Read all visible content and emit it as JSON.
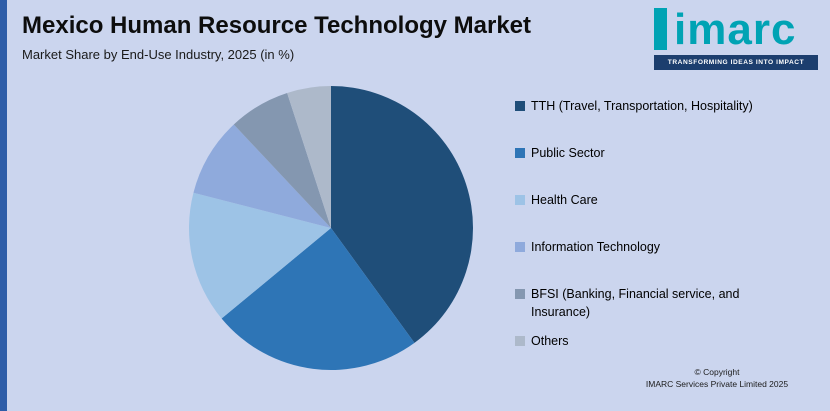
{
  "header": {
    "title": "Mexico Human Resource Technology Market",
    "subtitle": "Market Share by End-Use Industry, 2025 (in %)"
  },
  "logo": {
    "brand": "imarc",
    "tagline": "TRANSFORMING IDEAS INTO IMPACT",
    "teal": "#00A3B4",
    "navy": "#1C3E6E"
  },
  "footer": {
    "line1": "© Copyright",
    "line2": "IMARC Services Private Limited 2025"
  },
  "colors": {
    "background": "#CBD5EE",
    "left_bar": "#2E5DA8",
    "title_text": "#0d0d0d"
  },
  "chart_data": {
    "type": "pie",
    "title": "Mexico Human Resource Technology Market",
    "subtitle": "Market Share by End-Use Industry, 2025 (in %)",
    "unit": "%",
    "start_angle": "12 o'clock",
    "direction": "clockwise",
    "legend_position": "right",
    "slices": [
      {
        "label": "TTH (Travel, Transportation, Hospitality)",
        "value": 40,
        "color": "#1F4E79"
      },
      {
        "label": "Public Sector",
        "value": 24,
        "color": "#2E75B6"
      },
      {
        "label": "Health Care",
        "value": 15,
        "color": "#9DC3E6"
      },
      {
        "label": "Information Technology",
        "value": 9,
        "color": "#8FAADC"
      },
      {
        "label": "BFSI (Banking, Financial service, and Insurance)",
        "value": 7,
        "color": "#8497B0"
      },
      {
        "label": "Others",
        "value": 5,
        "color": "#ADB9CA"
      }
    ]
  }
}
